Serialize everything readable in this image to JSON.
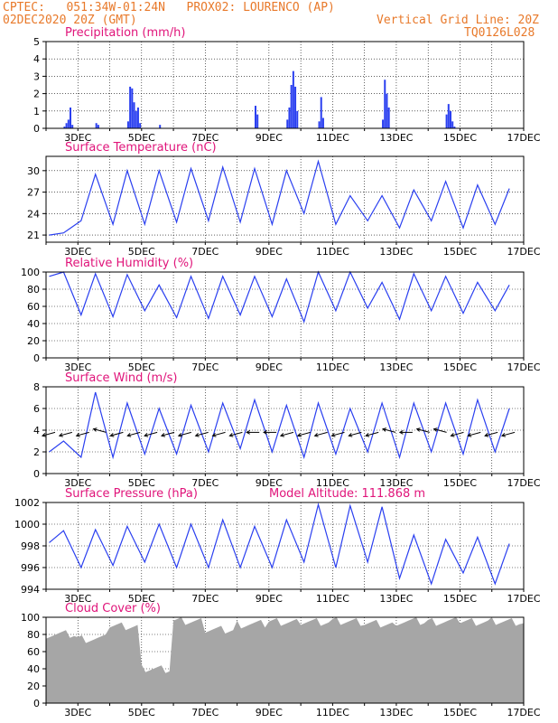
{
  "header": {
    "line1_left": "CPTEC:   051:34W-01:24N   PROX02: LOURENCO (AP)",
    "line2_left": "02DEC2020 20Z (GMT)",
    "line2_right": "Vertical Grid Line: 20Z",
    "line3_right": "TQ0126L028",
    "color": "#e8792a"
  },
  "colors": {
    "title": "#e0147a",
    "series": "#2a3ff0",
    "cloud": "#a6a6a6",
    "wind": "#000000",
    "axis": "#000000"
  },
  "date_ticks": [
    "3DEC",
    "5DEC",
    "7DEC",
    "9DEC",
    "11DEC",
    "13DEC",
    "15DEC",
    "17DEC"
  ],
  "chart_data": [
    {
      "type": "bar",
      "title": "Precipitation (mm/h)",
      "ylim": [
        0,
        5
      ],
      "yticks": [
        "0",
        "1",
        "2",
        "3",
        "4",
        "5"
      ],
      "xrange_days": "2DEC2020 20Z - 17DEC2020 20Z",
      "grid": true,
      "events": [
        {
          "day": "2DEC",
          "values": [
            0.1,
            0.3,
            0.5,
            1.2,
            0.2
          ]
        },
        {
          "day": "3DEC",
          "values": [
            0.3,
            0.2
          ]
        },
        {
          "day": "4DEC",
          "values": [
            0.4,
            2.4,
            2.3,
            1.5,
            1.0,
            1.2,
            0.3
          ]
        },
        {
          "day": "5DEC",
          "values": [
            0.2
          ]
        },
        {
          "day": "8DEC",
          "values": [
            1.3,
            0.8
          ]
        },
        {
          "day": "9DEC",
          "values": [
            0.5,
            1.2,
            2.5,
            3.3,
            2.4,
            1.0
          ]
        },
        {
          "day": "10DEC",
          "values": [
            0.4,
            1.8,
            0.6
          ]
        },
        {
          "day": "12DEC",
          "values": [
            0.5,
            2.8,
            2.0,
            1.2
          ]
        },
        {
          "day": "14DEC",
          "values": [
            0.8,
            1.4,
            1.0,
            0.4,
            0.1
          ]
        }
      ]
    },
    {
      "type": "line",
      "title": "Surface Temperature (nC)",
      "ylim": [
        20,
        32
      ],
      "yticks": [
        "21",
        "24",
        "27",
        "30"
      ],
      "daily_max": [
        21.3,
        29.5,
        30.0,
        30.0,
        30.3,
        30.5,
        30.3,
        30.0,
        31.3,
        26.5,
        26.5,
        27.3,
        28.5,
        28.0,
        27.5,
        29.0,
        30.0
      ],
      "daily_min": [
        21.0,
        23.0,
        22.5,
        22.5,
        22.8,
        23.0,
        22.8,
        22.5,
        24.0,
        22.5,
        23.0,
        22.0,
        23.0,
        22.0,
        22.5,
        23.0,
        23.0
      ]
    },
    {
      "type": "line",
      "title": "Relative Humidity (%)",
      "ylim": [
        0,
        100
      ],
      "yticks": [
        "0",
        "20",
        "40",
        "60",
        "80",
        "100"
      ],
      "daily_max": [
        100,
        98,
        97,
        85,
        95,
        95,
        95,
        92,
        100,
        100,
        88,
        98,
        95,
        88,
        85,
        98,
        100
      ],
      "daily_min": [
        95,
        50,
        48,
        55,
        47,
        46,
        50,
        48,
        42,
        55,
        58,
        45,
        55,
        52,
        55,
        50,
        48
      ]
    },
    {
      "type": "line",
      "title": "Surface Wind (m/s)",
      "ylim": [
        0,
        8
      ],
      "yticks": [
        "0",
        "2",
        "4",
        "6",
        "8"
      ],
      "speed_max": [
        3.0,
        7.5,
        6.5,
        6.0,
        6.3,
        6.5,
        6.8,
        6.3,
        6.5,
        6.0,
        6.5,
        6.5,
        6.5,
        6.8,
        6.0,
        5.5,
        4.5
      ],
      "speed_min": [
        2.0,
        1.5,
        1.5,
        1.8,
        1.8,
        2.0,
        2.3,
        2.0,
        1.5,
        1.8,
        2.0,
        1.5,
        2.0,
        1.8,
        2.0,
        2.0,
        2.5
      ],
      "arrows": [
        "SW",
        "SW",
        "SW",
        "NW",
        "SW",
        "SW",
        "SW",
        "SW",
        "SW",
        "SW",
        "SW",
        "SW",
        "W",
        "W",
        "SW",
        "SW",
        "SW",
        "SW",
        "SW",
        "SW",
        "NW",
        "W",
        "NW",
        "NW",
        "SW",
        "SW",
        "SW",
        "SW"
      ]
    },
    {
      "type": "line",
      "title": "Surface Pressure (hPa)",
      "annotation": "Model Altitude: 111.868 m",
      "ylim": [
        994,
        1002
      ],
      "yticks": [
        "994",
        "996",
        "998",
        "1000",
        "1002"
      ],
      "daily_max": [
        999.4,
        999.5,
        999.8,
        1000.0,
        1000.0,
        1000.4,
        999.8,
        1000.4,
        1001.8,
        1001.7,
        1001.6,
        999.0,
        998.6,
        998.8,
        998.2,
        998.0,
        997.0
      ],
      "daily_min": [
        998.3,
        996.0,
        996.2,
        996.5,
        996.0,
        996.0,
        996.0,
        996.0,
        996.5,
        996.0,
        996.5,
        995.0,
        994.5,
        995.5,
        994.5,
        995.0,
        994.5
      ]
    },
    {
      "type": "area",
      "title": "Cloud Cover (%)",
      "ylim": [
        0,
        100
      ],
      "yticks": [
        "0",
        "20",
        "40",
        "60",
        "80",
        "100"
      ],
      "daily_mean": [
        80,
        75,
        90,
        40,
        95,
        85,
        92,
        95,
        95,
        95,
        92,
        95,
        95,
        95,
        95,
        92,
        90
      ]
    }
  ]
}
